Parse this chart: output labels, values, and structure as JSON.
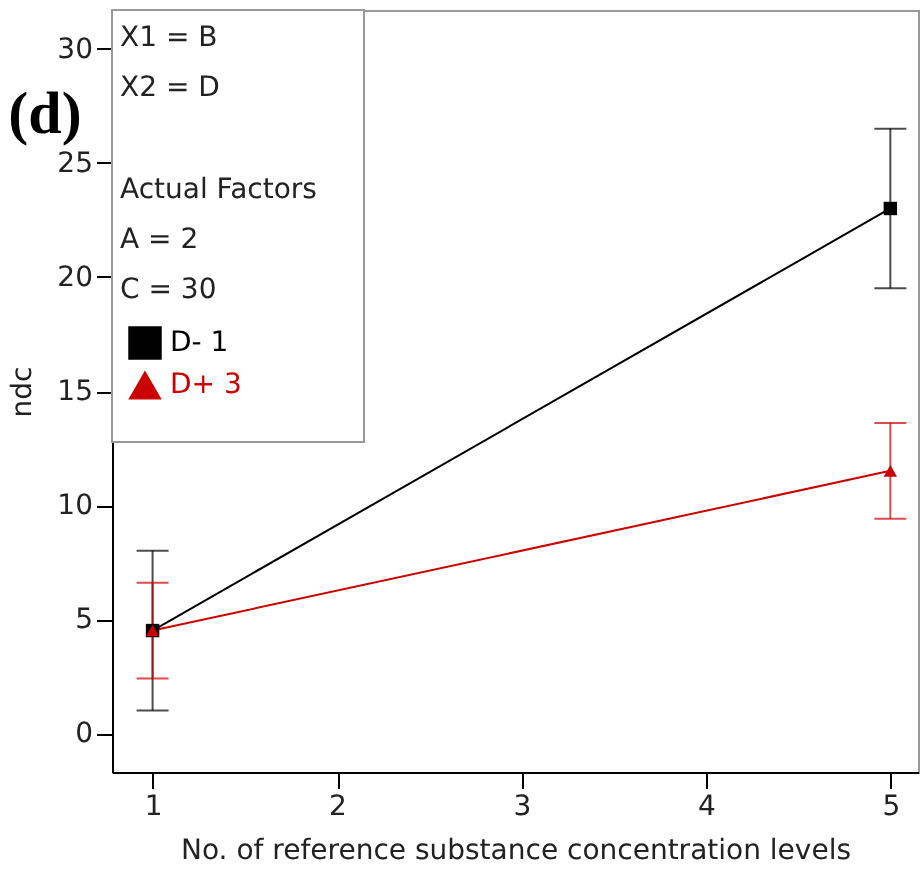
{
  "chart_data": {
    "type": "line",
    "title": "(d)",
    "xlabel": "No. of reference substance concentration levels",
    "ylabel": "ndc",
    "x": [
      1,
      5
    ],
    "series": [
      {
        "name": "D- 1",
        "color": "#000000",
        "marker": "square",
        "values": [
          4.5,
          23
        ],
        "errors": [
          [
            1,
            8
          ],
          [
            19.5,
            26.5
          ]
        ]
      },
      {
        "name": "D+ 3",
        "color": "#cc0000",
        "marker": "triangle",
        "values": [
          4.5,
          11.5
        ],
        "errors": [
          [
            2.4,
            6.6
          ],
          [
            9.4,
            13.6
          ]
        ]
      }
    ],
    "xlim": [
      0.78,
      5.15
    ],
    "xticks": [
      1,
      2,
      3,
      4,
      5
    ],
    "ylim": [
      -1.7,
      31.7
    ],
    "yticks": [
      0,
      5,
      10,
      15,
      20,
      25,
      30
    ],
    "grid": false,
    "legend": "top left",
    "annotations": [
      "X1 = B",
      "X2 = D",
      "Actual Factors",
      "A = 2",
      "C = 30"
    ]
  }
}
